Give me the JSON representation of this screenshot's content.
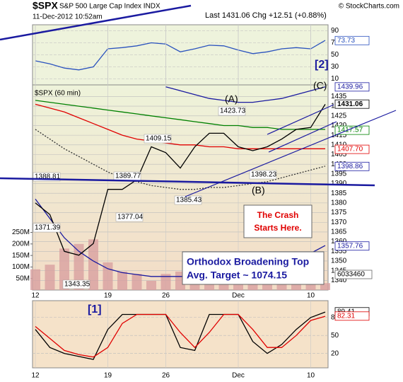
{
  "header": {
    "symbol": "$SPX",
    "name": "S&P 500 Large Cap Index INDX",
    "date": "11-Dec-2012 10:52am",
    "quote": "Last 1431.06  Chg +12.51 (+0.88%)",
    "credit": "© StockCharts.com"
  },
  "annotations": {
    "crash": [
      "The Crash",
      "Starts Here."
    ],
    "target": [
      "Orthodox Broadening Top",
      "Avg. Target ~ 1074.15"
    ]
  },
  "chart_data": [
    {
      "type": "line",
      "label": "[2]",
      "ylim": [
        0,
        100
      ],
      "yticks": [
        90,
        70,
        50,
        30,
        10
      ],
      "grid": true,
      "series": [
        {
          "color": "#2a52be",
          "values": [
            40,
            35,
            28,
            25,
            30,
            60,
            62,
            65,
            70,
            68,
            55,
            60,
            66,
            65,
            58,
            52,
            55,
            60,
            62,
            60,
            74
          ]
        }
      ],
      "last_labels": [
        {
          "value": 73.73,
          "color": "#2a52be"
        }
      ]
    },
    {
      "type": "line",
      "title": "$SPX (60 min)",
      "categories": [
        "12",
        null,
        null,
        null,
        null,
        "19",
        null,
        null,
        null,
        "26",
        null,
        null,
        null,
        null,
        "Dec",
        null,
        null,
        null,
        null,
        "10",
        null
      ],
      "ylim": [
        1335,
        1441
      ],
      "yticks": [
        1340,
        1345,
        1350,
        1355,
        1360,
        1365,
        1370,
        1375,
        1380,
        1385,
        1390,
        1395,
        1400,
        1405,
        1410,
        1415,
        1420,
        1425,
        1430,
        1435
      ],
      "grid": true,
      "y2lim": [
        0,
        890000000
      ],
      "y2ticks": [
        {
          "value": 50000000,
          "label": "50M"
        },
        {
          "value": 100000000,
          "label": "100M"
        },
        {
          "value": 150000000,
          "label": "150M"
        },
        {
          "value": 200000000,
          "label": "200M"
        },
        {
          "value": 250000000,
          "label": "250M"
        }
      ],
      "series": [
        {
          "type": "bar",
          "axis": "y2",
          "color": "#d8a0a0",
          "values": [
            90000000,
            110000000,
            180000000,
            200000000,
            220000000,
            120000000,
            80000000,
            70000000,
            40000000,
            70000000,
            80000000,
            90000000,
            80000000,
            90000000,
            80000000,
            70000000,
            80000000,
            70000000,
            60000000,
            60000000,
            30000000
          ]
        },
        {
          "color": "#1a1aa0",
          "values": [
            null,
            null,
            null,
            null,
            null,
            null,
            null,
            null,
            null,
            1440,
            1438,
            1436,
            1434,
            1433,
            1432,
            1432,
            1433,
            1434,
            1436,
            1438,
            1440
          ]
        },
        {
          "color": "#1a1aa0",
          "values": [
            1382,
            1372,
            1362,
            1355,
            1350,
            1346,
            1344,
            1343,
            1342,
            1342,
            1342,
            1342,
            1342,
            1343,
            1343,
            1344,
            1346,
            1348,
            1351,
            1354,
            1358
          ]
        },
        {
          "color": "#333333",
          "style": "dotted",
          "values": [
            1418,
            1413,
            1408,
            1404,
            1400,
            1396,
            1393,
            1391,
            1389,
            1388,
            1387,
            1387,
            1388,
            1388,
            1389,
            1390,
            1391,
            1393,
            1395,
            1397,
            1399
          ]
        },
        {
          "color": "#008000",
          "values": [
            1433,
            1432,
            1431,
            1430,
            1429,
            1428,
            1427,
            1426,
            1425,
            1424,
            1423,
            1422,
            1421,
            1420,
            1420,
            1419,
            1419,
            1418,
            1418,
            1418,
            1418
          ]
        },
        {
          "color": "#e00000",
          "values": [
            1431,
            1429,
            1427,
            1424,
            1421,
            1418,
            1415,
            1413,
            1412,
            1411,
            1410,
            1410,
            1409,
            1409,
            1408,
            1408,
            1408,
            1408,
            1408,
            1408,
            1408
          ]
        },
        {
          "color": "#000000",
          "values": [
            1380,
            1374,
            1355,
            1353,
            1359,
            1387,
            1387,
            1392,
            1409,
            1406,
            1398,
            1409,
            1416,
            1416,
            1409,
            1407,
            1409,
            1413,
            1418,
            1419,
            1431
          ]
        }
      ],
      "last_labels": [
        {
          "value": 1439.96,
          "color": "#1a1aa0"
        },
        {
          "value": 1431.06,
          "color": "#000000"
        },
        {
          "value": 1417.57,
          "color": "#008000"
        },
        {
          "value": 1407.7,
          "label": "1407.70",
          "color": "#e00000"
        },
        {
          "value": 1398.86,
          "color": "#1a1aa0"
        },
        {
          "value": 1357.76,
          "color": "#1a1aa0"
        }
      ],
      "volume_last": 6033460,
      "swing_labels": [
        1388.81,
        1371.39,
        1343.35,
        1377.04,
        1389.77,
        1409.15,
        1385.43,
        1423.73,
        1398.23
      ],
      "wave_labels": [
        "(A)",
        "(B)",
        "(C)"
      ]
    },
    {
      "type": "line",
      "label": "[1]",
      "categories": [
        "12",
        null,
        null,
        null,
        null,
        "19",
        null,
        null,
        null,
        "26",
        null,
        null,
        null,
        null,
        "Dec",
        null,
        null,
        null,
        null,
        "10",
        null
      ],
      "ylim": [
        -4,
        108
      ],
      "yticks": [
        80,
        50,
        20
      ],
      "grid": true,
      "series": [
        {
          "color": "#000000",
          "values": [
            60,
            30,
            20,
            15,
            10,
            60,
            85,
            85,
            85,
            85,
            30,
            25,
            85,
            85,
            85,
            40,
            20,
            35,
            60,
            80,
            89
          ]
        },
        {
          "color": "#e00000",
          "values": [
            65,
            45,
            25,
            18,
            14,
            30,
            70,
            85,
            85,
            85,
            55,
            30,
            55,
            85,
            85,
            60,
            30,
            30,
            50,
            75,
            82
          ]
        }
      ],
      "last_labels": [
        {
          "value": 89.41,
          "color": "#000000"
        },
        {
          "value": 82.31,
          "color": "#e00000"
        }
      ]
    }
  ]
}
